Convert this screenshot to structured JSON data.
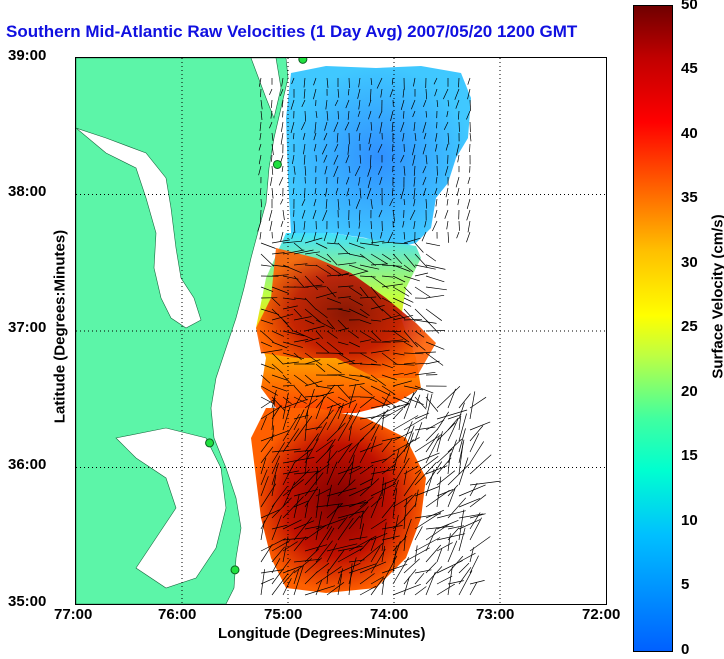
{
  "title": "Southern Mid-Atlantic Raw Velocities (1 Day Avg) 2007/05/20 1200 GMT",
  "x_axis": {
    "label": "Longitude (Degrees:Minutes)",
    "ticks": [
      "77:00",
      "76:00",
      "75:00",
      "74:00",
      "73:00",
      "72:00"
    ]
  },
  "y_axis": {
    "label": "Latitude (Degrees:Minutes)",
    "ticks": [
      "39:00",
      "38:00",
      "37:00",
      "36:00",
      "35:00"
    ]
  },
  "colorbar": {
    "label": "Surface Velocity (cm/s)",
    "ticks": [
      "50",
      "45",
      "40",
      "35",
      "30",
      "25",
      "20",
      "15",
      "10",
      "5",
      "0"
    ],
    "range": [
      0,
      50
    ]
  },
  "map": {
    "bounds": {
      "lon": [
        -77,
        -72
      ],
      "lat": [
        35,
        39
      ]
    },
    "grid": true,
    "land_color": "#5cf5a8",
    "station_color": "#20e040",
    "stations": [
      {
        "lon": -74.86,
        "lat": 38.99
      },
      {
        "lon": -75.1,
        "lat": 38.22
      },
      {
        "lon": -75.74,
        "lat": 36.18
      },
      {
        "lon": -75.5,
        "lat": 35.25
      }
    ]
  }
}
